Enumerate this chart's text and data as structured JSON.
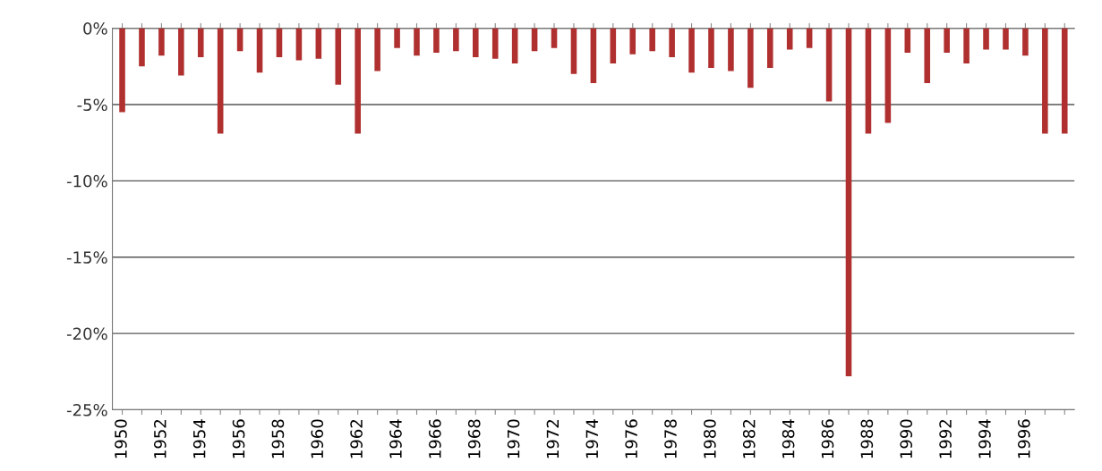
{
  "chart_data": {
    "type": "bar",
    "categories": [
      "1950",
      null,
      "1952",
      null,
      "1954",
      null,
      "1956",
      null,
      "1958",
      null,
      "1960",
      null,
      "1962",
      null,
      "1964",
      null,
      "1966",
      null,
      "1968",
      null,
      "1970",
      null,
      "1972",
      null,
      "1974",
      null,
      "1976",
      null,
      "1978",
      null,
      "1980",
      null,
      "1982",
      null,
      "1984",
      null,
      "1986",
      null,
      "1988",
      null,
      "1990",
      null,
      "1992",
      null,
      "1994",
      null,
      "1996",
      null,
      null
    ],
    "values": [
      -5.5,
      -2.5,
      -1.8,
      -3.1,
      -1.9,
      -6.9,
      -1.5,
      -2.9,
      -1.9,
      -2.1,
      -2.0,
      -3.7,
      -6.9,
      -2.8,
      -1.3,
      -1.8,
      -1.6,
      -1.5,
      -1.9,
      -2.0,
      -2.3,
      -1.5,
      -1.3,
      -3.0,
      -3.6,
      -2.3,
      -1.7,
      -1.5,
      -1.9,
      -2.9,
      -2.6,
      -2.8,
      -3.9,
      -2.6,
      -1.4,
      -1.3,
      -4.8,
      -22.8,
      -6.9,
      -6.2,
      -1.6,
      -3.6,
      -1.6,
      -2.3,
      -1.4,
      -1.4,
      -1.8,
      -6.9,
      -6.9
    ],
    "color": "#b03030",
    "ylim": [
      -25,
      0
    ],
    "yticks": [
      {
        "value": -25,
        "label": "-25%"
      },
      {
        "value": -20,
        "label": "-20%"
      },
      {
        "value": -15,
        "label": "-15%"
      },
      {
        "value": -10,
        "label": "-10%"
      },
      {
        "value": -5,
        "label": "-5%"
      },
      {
        "value": 0,
        "label": "0%"
      }
    ],
    "grid": "y"
  }
}
